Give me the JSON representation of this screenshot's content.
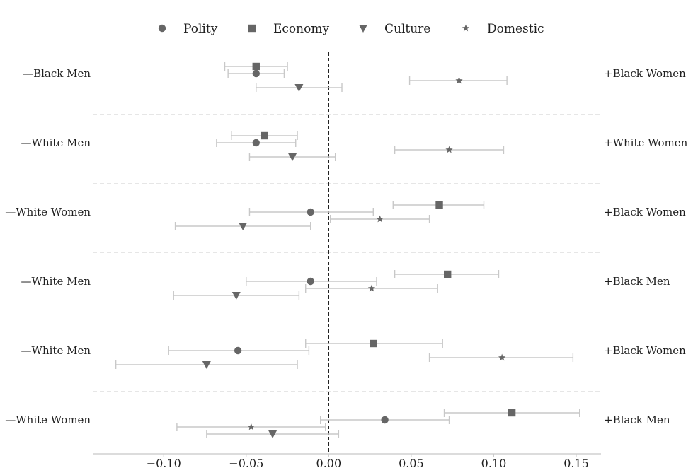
{
  "chart_data": {
    "type": "scatter",
    "subtype": "dot-and-whisker",
    "title": "",
    "xlabel": "",
    "ylabel": "",
    "xlim": [
      -0.143,
      0.165
    ],
    "x_ticks": [
      -0.1,
      -0.05,
      0.0,
      0.05,
      0.1,
      0.15
    ],
    "x_tick_labels": [
      "−0.10",
      "−0.05",
      "0.00",
      "0.05",
      "0.10",
      "0.15"
    ],
    "reference_line": 0,
    "grid": false,
    "legend_position": "top-center",
    "colors": {
      "marker": "#666666",
      "whisker": "#c8c8c8",
      "separator": "#e6e6e6",
      "zero_line": "#222222",
      "axis": "#c8c8c8"
    },
    "series": [
      {
        "name": "Polity",
        "marker": "circle"
      },
      {
        "name": "Economy",
        "marker": "square"
      },
      {
        "name": "Culture",
        "marker": "triangle-down"
      },
      {
        "name": "Domestic",
        "marker": "star"
      }
    ],
    "rows": [
      {
        "left_label": "—Black Men",
        "right_label": "+Black Women",
        "estimates": [
          {
            "series": "Economy",
            "value": -0.044,
            "low": -0.063,
            "high": -0.025,
            "slot": -1
          },
          {
            "series": "Polity",
            "value": -0.044,
            "low": -0.061,
            "high": -0.027,
            "slot": 0
          },
          {
            "series": "Domestic",
            "value": 0.079,
            "low": 0.049,
            "high": 0.108,
            "slot": 1
          },
          {
            "series": "Culture",
            "value": -0.018,
            "low": -0.044,
            "high": 0.008,
            "slot": 2
          }
        ]
      },
      {
        "left_label": "—White Men",
        "right_label": "+White Women",
        "estimates": [
          {
            "series": "Economy",
            "value": -0.039,
            "low": -0.059,
            "high": -0.019,
            "slot": -1
          },
          {
            "series": "Polity",
            "value": -0.044,
            "low": -0.068,
            "high": -0.02,
            "slot": 0
          },
          {
            "series": "Domestic",
            "value": 0.073,
            "low": 0.04,
            "high": 0.106,
            "slot": 1
          },
          {
            "series": "Culture",
            "value": -0.022,
            "low": -0.048,
            "high": 0.004,
            "slot": 2
          }
        ]
      },
      {
        "left_label": "—White Women",
        "right_label": "+Black Women",
        "estimates": [
          {
            "series": "Economy",
            "value": 0.067,
            "low": 0.039,
            "high": 0.094,
            "slot": -1
          },
          {
            "series": "Polity",
            "value": -0.011,
            "low": -0.048,
            "high": 0.027,
            "slot": 0
          },
          {
            "series": "Domestic",
            "value": 0.031,
            "low": 0.001,
            "high": 0.061,
            "slot": 1
          },
          {
            "series": "Culture",
            "value": -0.052,
            "low": -0.093,
            "high": -0.011,
            "slot": 2
          }
        ]
      },
      {
        "left_label": "—White Men",
        "right_label": "+Black Men",
        "estimates": [
          {
            "series": "Economy",
            "value": 0.072,
            "low": 0.04,
            "high": 0.103,
            "slot": -1
          },
          {
            "series": "Polity",
            "value": -0.011,
            "low": -0.05,
            "high": 0.029,
            "slot": 0
          },
          {
            "series": "Domestic",
            "value": 0.026,
            "low": -0.014,
            "high": 0.066,
            "slot": 1
          },
          {
            "series": "Culture",
            "value": -0.056,
            "low": -0.094,
            "high": -0.018,
            "slot": 2
          }
        ]
      },
      {
        "left_label": "—White Men",
        "right_label": "+Black Women",
        "estimates": [
          {
            "series": "Economy",
            "value": 0.027,
            "low": -0.014,
            "high": 0.069,
            "slot": -1
          },
          {
            "series": "Polity",
            "value": -0.055,
            "low": -0.097,
            "high": -0.012,
            "slot": 0
          },
          {
            "series": "Domestic",
            "value": 0.105,
            "low": 0.061,
            "high": 0.148,
            "slot": 1
          },
          {
            "series": "Culture",
            "value": -0.074,
            "low": -0.129,
            "high": -0.019,
            "slot": 2
          }
        ]
      },
      {
        "left_label": "—White Women",
        "right_label": "+Black Men",
        "estimates": [
          {
            "series": "Economy",
            "value": 0.111,
            "low": 0.07,
            "high": 0.152,
            "slot": -1
          },
          {
            "series": "Polity",
            "value": 0.034,
            "low": -0.005,
            "high": 0.073,
            "slot": 0
          },
          {
            "series": "Domestic",
            "value": -0.047,
            "low": -0.092,
            "high": -0.002,
            "slot": 1
          },
          {
            "series": "Culture",
            "value": -0.034,
            "low": -0.074,
            "high": 0.006,
            "slot": 2
          }
        ]
      }
    ]
  }
}
